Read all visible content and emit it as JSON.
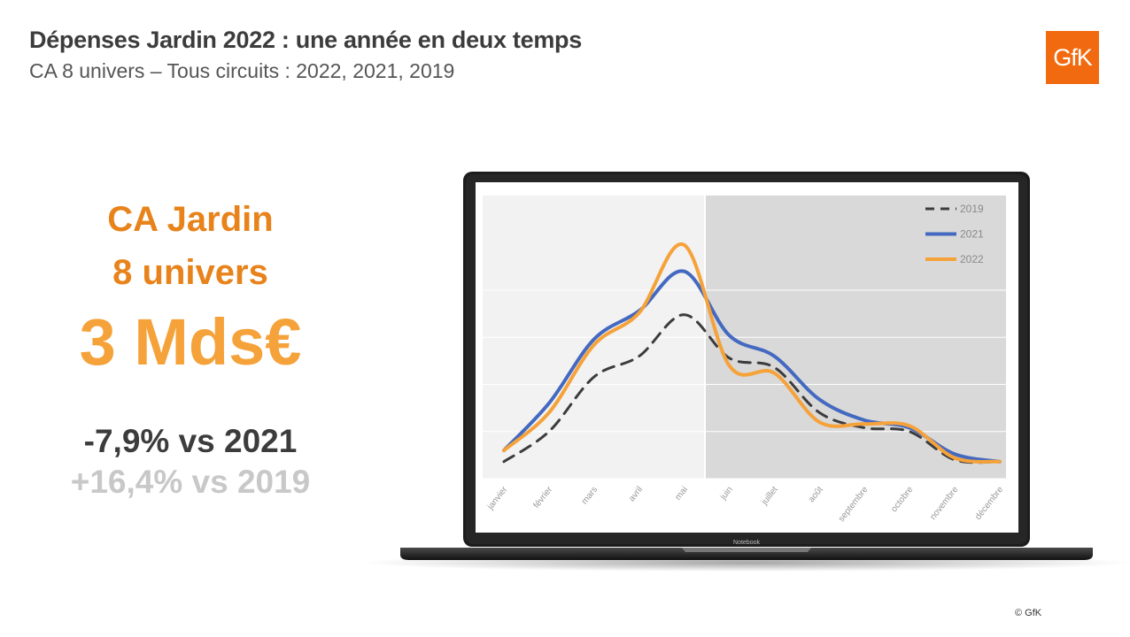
{
  "header": {
    "title": "Dépenses Jardin 2022 : une année en deux temps",
    "subtitle": "CA 8 univers – Tous circuits : 2022, 2021, 2019",
    "logo_text": "GfK"
  },
  "kpi": {
    "line1": "CA Jardin",
    "line2": "8 univers",
    "value": "3 Mds€",
    "vs2021": "-7,9% vs 2021",
    "vs2019": "+16,4% vs 2019"
  },
  "laptop": {
    "label": "Notebook"
  },
  "footer": {
    "copyright": "© GfK"
  },
  "colors": {
    "orange": "#f5a23a",
    "blue": "#4469c0",
    "dark": "#3c3c3c",
    "brand": "#f26a10"
  },
  "chart_data": {
    "type": "line",
    "categories": [
      "janvier",
      "février",
      "mars",
      "avril",
      "mai",
      "juin",
      "juillet",
      "août",
      "septembre",
      "octobre",
      "novembre",
      "décembre"
    ],
    "ylim": [
      0,
      110
    ],
    "grid": true,
    "legend_position": "top-right",
    "series": [
      {
        "name": "2019",
        "color": "#3c3c3c",
        "dashed": true,
        "values": [
          9,
          25,
          54,
          65,
          87,
          64,
          59,
          35,
          27,
          25,
          10,
          9
        ]
      },
      {
        "name": "2021",
        "color": "#4469c0",
        "dashed": false,
        "values": [
          15,
          40,
          74,
          89,
          110,
          76,
          65,
          42,
          31,
          27,
          13,
          9
        ]
      },
      {
        "name": "2022",
        "color": "#f5a23a",
        "dashed": false,
        "values": [
          15,
          35,
          71,
          88,
          124,
          60,
          56,
          30,
          29,
          28,
          11,
          9
        ]
      }
    ]
  }
}
